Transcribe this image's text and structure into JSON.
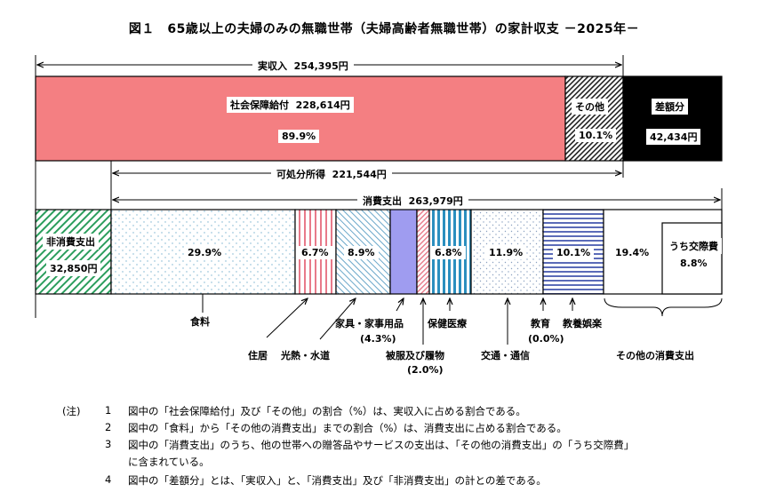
{
  "title": "図１　65歳以上の夫婦のみの無職世帯（夫婦高齢者無職世帯）の家計収支 －2025年－",
  "chart_data": {
    "type": "bar",
    "income": {
      "total_label": "実収入",
      "total_value": "254,395円",
      "segments": [
        {
          "name": "社会保障給付",
          "value": "228,614円",
          "pct": "89.9%",
          "share": 0.899
        },
        {
          "name": "その他",
          "pct": "10.1%",
          "share": 0.101
        },
        {
          "name": "差額分",
          "value": "42,434円"
        }
      ]
    },
    "disposable": {
      "label": "可処分所得",
      "value": "221,544円"
    },
    "consumption": {
      "label": "消費支出",
      "value": "263,979円"
    },
    "nonconsumption": {
      "name": "非消費支出",
      "value": "32,850円"
    },
    "expenses": [
      {
        "name": "食料",
        "pct": "29.9%",
        "share": 29.9
      },
      {
        "name": "住居",
        "pct": "6.7%",
        "share": 6.7
      },
      {
        "name": "光熱・水道",
        "pct": "8.9%",
        "share": 8.9
      },
      {
        "name": "家具・家事用品",
        "pct": "(4.3%)",
        "share": 4.3
      },
      {
        "name": "被服及び履物",
        "pct": "(2.0%)",
        "share": 2.0
      },
      {
        "name": "保健医療",
        "pct": "6.8%",
        "share": 6.8
      },
      {
        "name": "交通・通信",
        "pct": "11.9%",
        "share": 11.9
      },
      {
        "name": "教育",
        "pct": "(0.0%)",
        "share": 0.0
      },
      {
        "name": "教養娯楽",
        "pct": "10.1%",
        "share": 10.1
      },
      {
        "name": "その他の消費支出",
        "pct": "19.4%",
        "share": 19.4
      }
    ],
    "sub_item": {
      "name": "うち交際費",
      "pct": "8.8%"
    }
  },
  "notes": {
    "marker": "(注)",
    "items": [
      {
        "num": "1",
        "text": "図中の「社会保障給付」及び「その他」の割合（%）は、実収入に占める割合である。"
      },
      {
        "num": "2",
        "text": "図中の「食料」から「その他の消費支出」までの割合（%）は、消費支出に占める割合である。"
      },
      {
        "num": "3",
        "text": "図中の「消費支出」のうち、他の世帯への贈答品やサービスの支出は、「その他の消費支出」の「うち交際費」"
      },
      {
        "num": "",
        "text": "に含まれている。"
      },
      {
        "num": "4",
        "text": "図中の「差額分」とは、「実収入」と、「消費支出」及び「非消費支出」の計との差である。"
      }
    ]
  }
}
